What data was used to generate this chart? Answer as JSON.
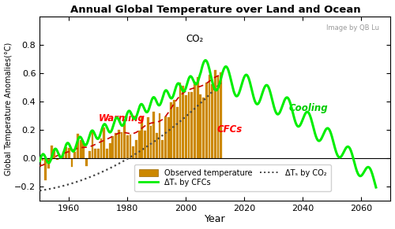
{
  "title": "Annual Global Temperature over Land and Ocean",
  "xlabel": "Year",
  "ylabel": "Global Temperature Anomalies(°C)",
  "xlim": [
    1950,
    2070
  ],
  "ylim": [
    -0.3,
    1.0
  ],
  "yticks": [
    -0.2,
    0.0,
    0.2,
    0.4,
    0.6,
    0.8
  ],
  "xticks": [
    1960,
    1980,
    2000,
    2020,
    2040,
    2060
  ],
  "bg_color": "#ffffff",
  "watermark": "Image by QB Lu",
  "co2_label": "CO₂",
  "warming_label": "Warming",
  "cfcs_label": "CFCs",
  "cooling_label": "Cooling",
  "bar_color": "#cc8800",
  "cfc_line_color": "#00ee00",
  "co2_line_color": "#444444",
  "obs_line_color": "#cc0000",
  "legend_items": [
    "Observed temperature",
    "ΔTₛ by CFCs",
    "ΔTₛ by CO₂"
  ]
}
